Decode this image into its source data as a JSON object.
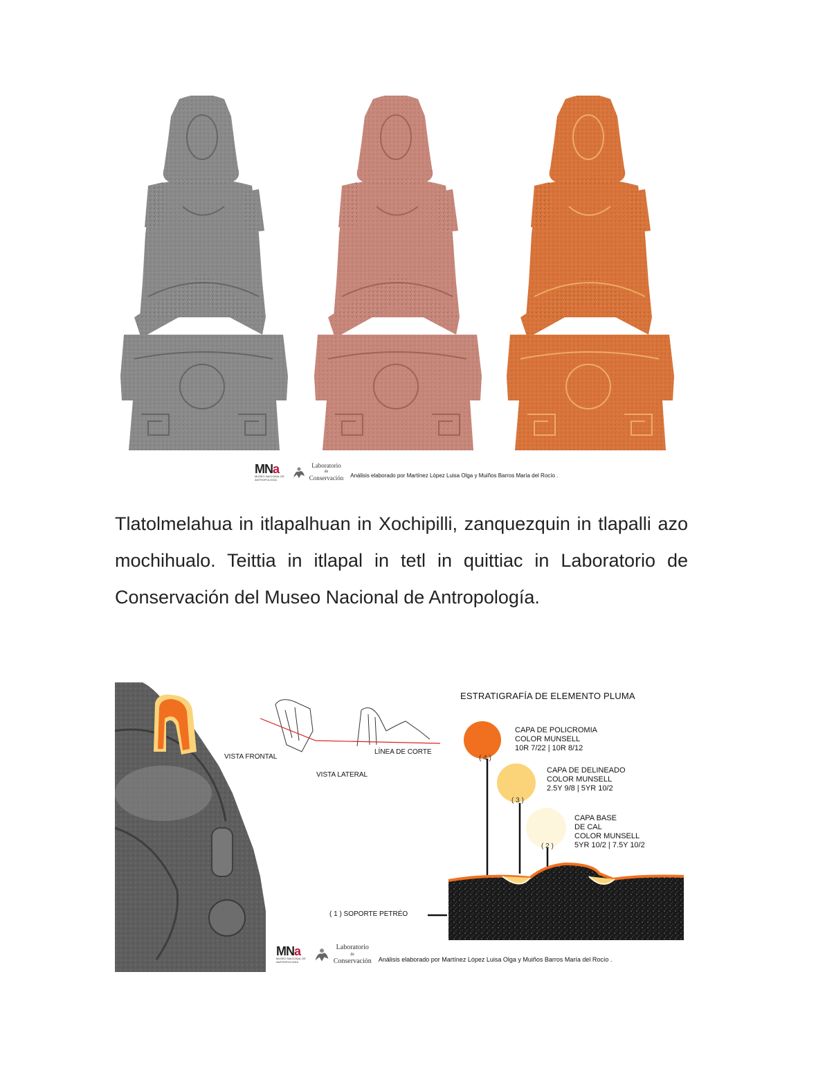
{
  "figure1": {
    "statues": [
      {
        "name": "grayscale",
        "color": "#8a8a8a",
        "shade": "#6e6e6e"
      },
      {
        "name": "pink",
        "color": "#c7877a",
        "shade": "#a8685c"
      },
      {
        "name": "orange",
        "color": "#d9743a",
        "shade": "#bb5a24"
      }
    ],
    "credit": {
      "mna_logo_m": "MN",
      "mna_logo_a": "a",
      "mna_sub_1": "Museo Nacional de",
      "mna_sub_2": "Antropología",
      "lab_line1": "Laboratorio",
      "lab_line2": "de",
      "lab_line3": "Conservación",
      "analysis": "Análisis elaborado por Martínez López Luisa Olga y Muiños Barros María del Rocío ."
    }
  },
  "paragraph": "Tlatolmelahua in itlapalhuan in Xochipilli, zanquezquin in tlapalli azo mochihualo. Teittia in itlapal in tetl in quittiac in Laboratorio de Conservación del Museo Nacional de Antropología.",
  "figure2": {
    "title": "ESTRATIGRAFÍA DE ELEMENTO PLUMA",
    "views": {
      "frontal": "VISTA FRONTAL",
      "lateral": "VISTA LATERAL",
      "cut_line": "LÍNEA DE CORTE"
    },
    "layers": [
      {
        "num": "( 4 )",
        "lines": [
          "CAPA DE POLICROMIA",
          "COLOR MUNSELL",
          "10R 7/22  |  10R 8/12"
        ],
        "color": "#f07020"
      },
      {
        "num": "( 3 )",
        "lines": [
          "CAPA DE DELINEADO",
          "COLOR MUNSELL",
          "2.5Y 9/8  |  5YR 10/2"
        ],
        "color": "#fbd47a"
      },
      {
        "num": "( 2 )",
        "lines": [
          "CAPA BASE",
          "DE CAL",
          "COLOR MUNSELL",
          "5YR 10/2  |  7.5Y 10/2"
        ],
        "color": "#fdf6dc"
      }
    ],
    "support_label": "( 1 ) SOPORTE PETRÉO",
    "credit": {
      "mna_logo_m": "MN",
      "mna_logo_a": "a",
      "mna_sub_1": "Museo Nacional de",
      "mna_sub_2": "Antropología",
      "lab_line1": "Laboratorio",
      "lab_line2": "de",
      "lab_line3": "Conservación",
      "analysis": "Análisis elaborado por Martínez López Luisa Olga y Muiños Barros María del Rocío ."
    }
  }
}
